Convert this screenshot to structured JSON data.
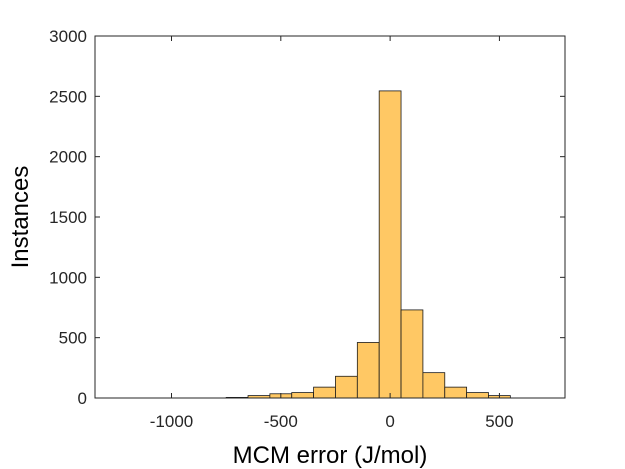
{
  "chart_data": {
    "type": "bar",
    "xlabel": "MCM error (J/mol)",
    "ylabel": "Instances",
    "xlim": [
      -1350,
      800
    ],
    "ylim": [
      0,
      3000
    ],
    "xticks": [
      -1000,
      -500,
      0,
      500
    ],
    "xtick_labels": [
      "-1000",
      "-500",
      "0",
      "500"
    ],
    "yticks": [
      0,
      500,
      1000,
      1500,
      2000,
      2500,
      3000
    ],
    "ytick_labels": [
      "0",
      "500",
      "1000",
      "1500",
      "2000",
      "2500",
      "3000"
    ],
    "bin_edges": [
      -750,
      -650,
      -550,
      -450,
      -350,
      -250,
      -150,
      -50,
      50,
      150,
      250,
      350,
      450,
      550
    ],
    "values": [
      5,
      20,
      35,
      45,
      90,
      180,
      460,
      2545,
      730,
      210,
      90,
      45,
      20
    ],
    "bar_color": "#ffc864",
    "grid": false
  }
}
